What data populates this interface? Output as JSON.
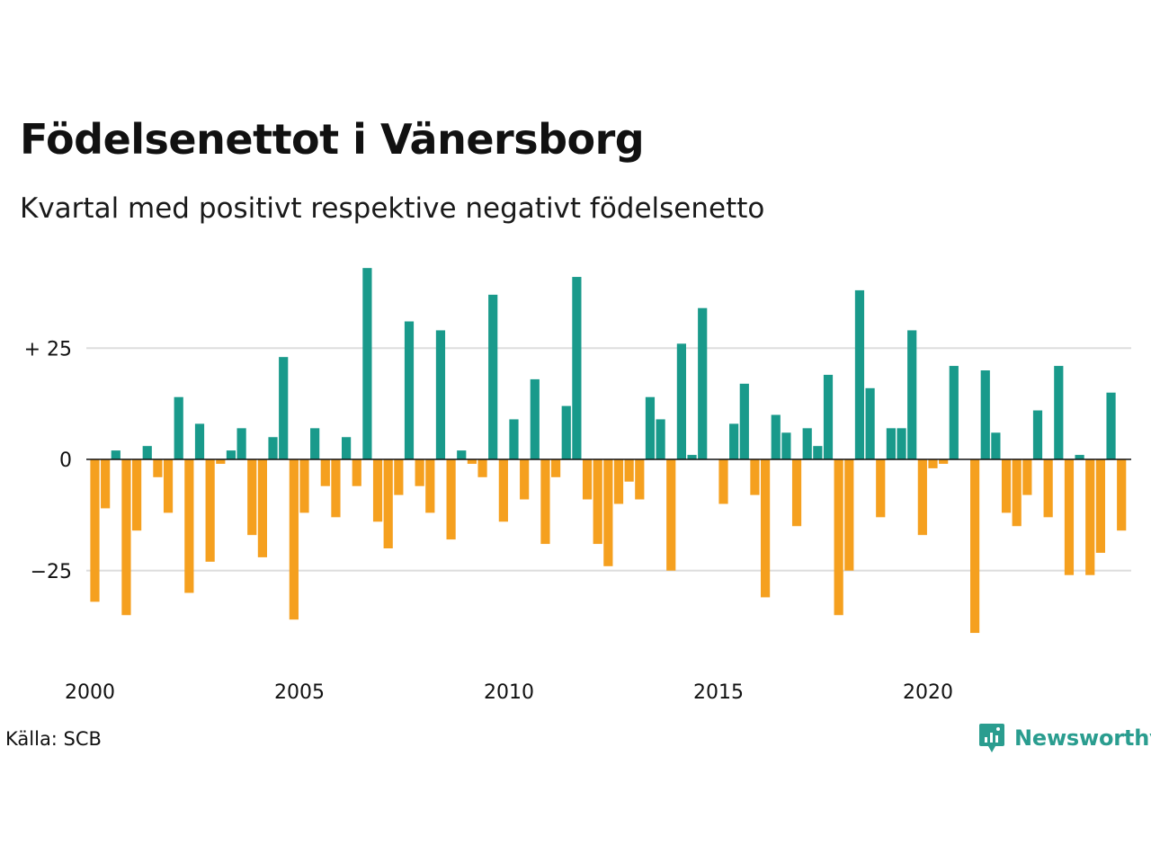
{
  "title": "Födelsenettot i Vänersborg",
  "subtitle": "Kvartal med positivt respektive negativt födelsenetto",
  "source": "Källa: SCB",
  "brand": "Newsworthy",
  "colors": {
    "positive": "#199a8b",
    "negative": "#f5a01f",
    "grid": "#dddddd",
    "axis": "#111111",
    "brand": "#2a9d8f"
  },
  "chart_data": {
    "type": "bar",
    "title": "Födelsenettot i Vänersborg",
    "subtitle": "Kvartal med positivt respektive negativt födelsenetto",
    "xlabel": "",
    "ylabel": "",
    "ylim": [
      -40,
      43
    ],
    "xlim": [
      2000,
      2025
    ],
    "grid": "horizontal",
    "y_ticks": [
      {
        "value": 25,
        "label": "+ 25"
      },
      {
        "value": 0,
        "label": "0"
      },
      {
        "value": -25,
        "label": "−25"
      }
    ],
    "x_ticks": [
      {
        "value": 2000,
        "label": "2000"
      },
      {
        "value": 2005,
        "label": "2005"
      },
      {
        "value": 2010,
        "label": "2010"
      },
      {
        "value": 2015,
        "label": "2015"
      },
      {
        "value": 2020,
        "label": "2020"
      }
    ],
    "start_year": 2000,
    "values": [
      -32,
      -11,
      2,
      -35,
      -16,
      3,
      -4,
      -12,
      14,
      -30,
      8,
      -23,
      -1,
      2,
      7,
      -17,
      -22,
      5,
      23,
      -36,
      -12,
      7,
      -6,
      -13,
      5,
      -6,
      43,
      -14,
      -20,
      -8,
      31,
      -6,
      -12,
      29,
      -18,
      2,
      -1,
      -4,
      37,
      -14,
      9,
      -9,
      18,
      -19,
      -4,
      12,
      41,
      -9,
      -19,
      -24,
      -10,
      -5,
      -9,
      14,
      9,
      -25,
      26,
      1,
      34,
      0,
      -10,
      8,
      17,
      -8,
      -31,
      10,
      6,
      -15,
      7,
      3,
      19,
      -35,
      -25,
      38,
      16,
      -13,
      7,
      7,
      29,
      -17,
      -2,
      -1,
      21,
      0,
      -39,
      20,
      6,
      -12,
      -15,
      -8,
      11,
      -13,
      21,
      -26,
      1,
      -26,
      -21,
      15,
      -16
    ]
  }
}
